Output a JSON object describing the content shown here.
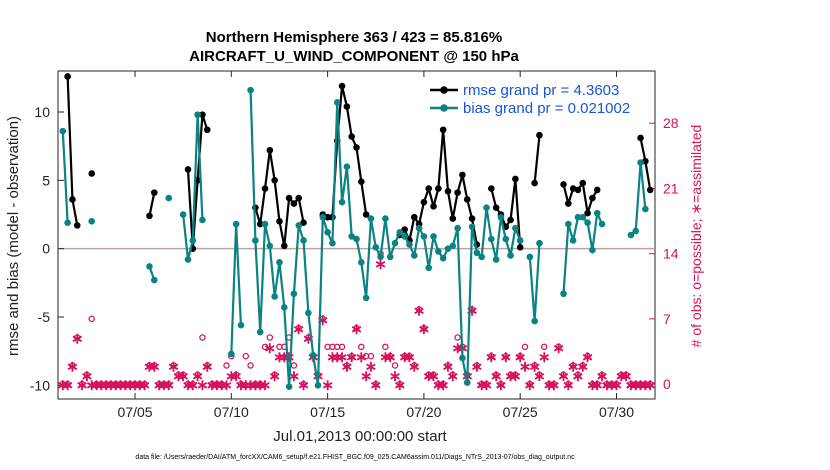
{
  "chart_data": {
    "type": "line",
    "title": "Northern Hemisphere 363 / 423 = 85.816%",
    "subtitle": "AIRCRAFT_U_WIND_COMPONENT @ 150 hPa",
    "xlabel": "Jul.01,2013 00:00:00 start",
    "ylabel": "rmse and bias (model - observation)",
    "ylabel_right": "# of obs: o=possible; ∗=assimilated",
    "footer": "data file: /Users/raeder/DAI/ATM_forcXX/CAM6_setup/f.e21.FHIST_BGC.f09_025.CAM6assim.011/Diags_NTrS_2013-07/obs_diag_output.nc",
    "xlim": [
      1,
      32
    ],
    "ylim": [
      -11,
      13
    ],
    "y2lim": [
      -1.6,
      33.6
    ],
    "x_ticks": [
      5,
      10,
      15,
      20,
      25,
      30
    ],
    "x_tick_labels": [
      "07/05",
      "07/10",
      "07/15",
      "07/20",
      "07/25",
      "07/30"
    ],
    "y_ticks": [
      -10,
      -5,
      0,
      5,
      10
    ],
    "y_tick_labels": [
      "-10",
      "-5",
      "0",
      "5",
      "10"
    ],
    "y2_ticks": [
      0,
      7,
      14,
      21,
      28
    ],
    "y2_tick_labels": [
      "0",
      "7",
      "14",
      "21",
      "28"
    ],
    "zero_line": 0,
    "legend_position": "top-right",
    "series": [
      {
        "name": "rmse grand pr = 4.3603",
        "color": "#000000",
        "marker": "filled-circle",
        "x": [
          1.5,
          1.75,
          2.0,
          null,
          2.75,
          null,
          5.75,
          6.0,
          null,
          7.75,
          8.0,
          8.25,
          8.5,
          8.75,
          null,
          11.25,
          11.5,
          11.75,
          12.0,
          12.25,
          12.5,
          12.75,
          13.0,
          13.25,
          13.5,
          13.75,
          null,
          14.75,
          15.0,
          15.25,
          15.5,
          15.75,
          16.0,
          16.25,
          16.5,
          16.75,
          17.0,
          null,
          18.75,
          19.0,
          19.25,
          19.5,
          19.75,
          20.0,
          20.25,
          20.5,
          20.75,
          21.0,
          21.25,
          21.5,
          21.75,
          22.0,
          22.25,
          22.5,
          22.75,
          null,
          23.5,
          23.75,
          24.0,
          24.25,
          24.5,
          24.75,
          25.0,
          null,
          25.75,
          26.0,
          null,
          27.25,
          27.5,
          27.75,
          28.0,
          28.25,
          28.5,
          28.75,
          29.0,
          null,
          31.25,
          31.5,
          31.75
        ],
        "values": [
          12.6,
          3.6,
          1.7,
          null,
          5.5,
          null,
          2.4,
          4.1,
          null,
          5.8,
          0.0,
          5.0,
          9.8,
          8.7,
          null,
          3.0,
          1.8,
          4.4,
          7.2,
          5.0,
          2.0,
          0.2,
          3.7,
          3.3,
          3.7,
          1.9,
          null,
          2.5,
          2.3,
          2.3,
          7.9,
          11.9,
          10.4,
          8.2,
          7.4,
          4.9,
          2.5,
          null,
          1.0,
          1.4,
          0.6,
          2.3,
          1.8,
          3.4,
          4.4,
          3.1,
          4.4,
          8.7,
          4.2,
          2.2,
          4.1,
          5.4,
          3.6,
          2.2,
          0.3,
          null,
          4.4,
          3.0,
          2.5,
          1.6,
          2.1,
          5.1,
          0.1,
          null,
          4.8,
          8.3,
          null,
          4.7,
          3.3,
          4.4,
          4.3,
          4.8,
          2.6,
          3.7,
          4.3,
          null,
          8.1,
          6.4,
          4.3
        ]
      },
      {
        "name": "bias grand pr = 0.021002",
        "color": "#0b8383",
        "marker": "filled-circle",
        "x": [
          1.25,
          1.5,
          null,
          2.75,
          null,
          5.75,
          6.0,
          null,
          6.75,
          null,
          7.5,
          7.75,
          8.0,
          8.25,
          8.5,
          null,
          10.0,
          10.25,
          10.5,
          null,
          11.0,
          11.25,
          11.5,
          11.75,
          12.0,
          12.25,
          12.5,
          12.75,
          13.0,
          13.25,
          13.5,
          13.75,
          14.0,
          14.25,
          14.5,
          14.75,
          15.0,
          15.25,
          15.5,
          15.75,
          16.0,
          16.25,
          16.5,
          16.75,
          17.0,
          17.25,
          17.5,
          17.75,
          18.0,
          18.25,
          18.5,
          18.75,
          19.0,
          19.25,
          19.5,
          19.75,
          20.0,
          20.25,
          20.5,
          20.75,
          21.0,
          21.25,
          21.5,
          21.75,
          22.0,
          22.25,
          22.5,
          22.75,
          23.0,
          23.25,
          23.5,
          23.75,
          24.0,
          24.25,
          24.5,
          24.75,
          25.0,
          null,
          25.5,
          25.75,
          26.0,
          null,
          27.25,
          27.5,
          27.75,
          28.0,
          28.25,
          28.5,
          28.75,
          29.0,
          29.25,
          null,
          30.75,
          31.0,
          31.25,
          31.5
        ],
        "values": [
          8.6,
          1.9,
          null,
          2.0,
          null,
          -1.3,
          -2.3,
          null,
          3.7,
          null,
          2.5,
          -0.8,
          0.6,
          9.8,
          2.1,
          null,
          -7.7,
          1.8,
          -5.6,
          null,
          11.6,
          0.6,
          -6.1,
          1.8,
          0.2,
          -3.5,
          -1.0,
          -4.3,
          -10.1,
          -3.3,
          1.7,
          0.6,
          -4.7,
          -7.8,
          -10.0,
          2.3,
          1.2,
          0.4,
          10.7,
          3.4,
          6.0,
          0.9,
          0.7,
          -1.0,
          -3.6,
          2.2,
          0.1,
          -0.6,
          2.2,
          -0.6,
          0.4,
          1.2,
          0.9,
          0.3,
          -0.5,
          1.5,
          0.9,
          -1.4,
          0.9,
          -0.2,
          -0.7,
          0.0,
          0.2,
          1.5,
          -8.0,
          -9.8,
          1.6,
          -0.3,
          -0.6,
          3.0,
          0.7,
          -0.8,
          2.3,
          0.7,
          -0.5,
          1.5,
          0.6,
          null,
          -0.6,
          -5.3,
          0.4,
          null,
          -3.3,
          1.8,
          0.6,
          2.3,
          2.3,
          1.9,
          -0.1,
          2.6,
          1.8,
          null,
          1.0,
          1.3,
          6.3,
          2.9
        ]
      }
    ],
    "obs_possible": {
      "name": "o=possible",
      "color": "#d6125f",
      "x": [
        1.25,
        1.5,
        1.75,
        2.0,
        2.25,
        2.5,
        2.75,
        3.0,
        3.25,
        3.5,
        3.75,
        4.0,
        4.25,
        4.5,
        4.75,
        5.0,
        5.25,
        5.5,
        5.75,
        6.0,
        6.25,
        6.5,
        6.75,
        7.0,
        7.25,
        7.5,
        7.75,
        8.0,
        8.25,
        8.5,
        8.75,
        9.0,
        9.25,
        9.5,
        9.75,
        10.0,
        10.25,
        10.5,
        10.75,
        11.0,
        11.25,
        11.5,
        11.75,
        12.0,
        12.25,
        12.5,
        12.75,
        13.0,
        13.25,
        13.5,
        13.75,
        14.0,
        14.25,
        14.5,
        14.75,
        15.0,
        15.25,
        15.5,
        15.75,
        16.0,
        16.25,
        16.5,
        16.75,
        17.0,
        17.25,
        17.5,
        17.75,
        18.0,
        18.25,
        18.5,
        18.75,
        19.0,
        19.25,
        19.5,
        19.75,
        20.0,
        20.25,
        20.5,
        20.75,
        21.0,
        21.25,
        21.5,
        21.75,
        22.0,
        22.25,
        22.5,
        22.75,
        23.0,
        23.25,
        23.5,
        23.75,
        24.0,
        24.25,
        24.5,
        24.75,
        25.0,
        25.25,
        25.5,
        25.75,
        26.0,
        26.25,
        26.5,
        26.75,
        27.0,
        27.25,
        27.5,
        27.75,
        28.0,
        28.25,
        28.5,
        28.75,
        29.0,
        29.25,
        29.5,
        29.75,
        30.0,
        30.25,
        30.5,
        30.75,
        31.0,
        31.25,
        31.5,
        31.75
      ],
      "values": [
        0,
        0,
        2,
        5,
        0,
        1,
        7,
        0,
        0,
        0,
        0,
        0,
        0,
        0,
        0,
        0,
        0,
        0,
        2,
        2,
        0,
        0,
        0,
        2,
        1,
        1,
        0,
        0,
        1,
        5,
        2,
        0,
        0,
        0,
        2,
        3,
        1,
        0,
        3,
        2,
        0,
        0,
        4,
        5,
        1,
        4,
        4,
        5,
        2,
        6,
        0,
        5,
        3,
        1,
        7,
        4,
        4,
        4,
        4,
        2,
        3,
        6,
        4,
        3,
        3,
        0,
        14,
        4,
        3,
        2,
        0,
        3,
        3,
        2,
        8,
        6,
        1,
        1,
        0,
        0,
        2,
        1,
        5,
        4,
        1,
        8,
        2,
        0,
        0,
        3,
        1,
        0,
        3,
        1,
        1,
        3,
        4,
        0,
        2,
        1,
        4,
        0,
        0,
        4,
        1,
        0,
        2,
        1,
        2,
        3,
        0,
        0,
        1,
        0,
        0,
        0,
        1,
        1,
        0,
        0,
        0,
        0,
        0
      ]
    },
    "obs_assimilated": {
      "name": "∗=assimilated",
      "color": "#d6125f",
      "x": [
        1.25,
        1.5,
        1.75,
        2.0,
        2.25,
        2.5,
        2.75,
        3.0,
        3.25,
        3.5,
        3.75,
        4.0,
        4.25,
        4.5,
        4.75,
        5.0,
        5.25,
        5.5,
        5.75,
        6.0,
        6.25,
        6.5,
        6.75,
        7.0,
        7.25,
        7.5,
        7.75,
        8.0,
        8.25,
        8.5,
        8.75,
        9.0,
        9.25,
        9.5,
        9.75,
        10.0,
        10.25,
        10.5,
        10.75,
        11.0,
        11.25,
        11.5,
        11.75,
        12.0,
        12.25,
        12.5,
        12.75,
        13.0,
        13.25,
        13.5,
        13.75,
        14.0,
        14.25,
        14.5,
        14.75,
        15.0,
        15.25,
        15.5,
        15.75,
        16.0,
        16.25,
        16.5,
        16.75,
        17.0,
        17.25,
        17.5,
        17.75,
        18.0,
        18.25,
        18.5,
        18.75,
        19.0,
        19.25,
        19.5,
        19.75,
        20.0,
        20.25,
        20.5,
        20.75,
        21.0,
        21.25,
        21.5,
        21.75,
        22.0,
        22.25,
        22.5,
        22.75,
        23.0,
        23.25,
        23.5,
        23.75,
        24.0,
        24.25,
        24.5,
        24.75,
        25.0,
        25.25,
        25.5,
        25.75,
        26.0,
        26.25,
        26.5,
        26.75,
        27.0,
        27.25,
        27.5,
        27.75,
        28.0,
        28.25,
        28.5,
        28.75,
        29.0,
        29.25,
        29.5,
        29.75,
        30.0,
        30.25,
        30.5,
        30.75,
        31.0,
        31.25,
        31.5,
        31.75
      ],
      "values": [
        0,
        0,
        2,
        5,
        0,
        1,
        0,
        0,
        0,
        0,
        0,
        0,
        0,
        0,
        0,
        0,
        0,
        0,
        2,
        2,
        0,
        0,
        0,
        2,
        1,
        1,
        0,
        0,
        1,
        0,
        2,
        0,
        0,
        0,
        0,
        1,
        1,
        0,
        0,
        0,
        0,
        0,
        0,
        4,
        1,
        3,
        3,
        3,
        1,
        6,
        0,
        5,
        3,
        1,
        7,
        0,
        3,
        3,
        3,
        2,
        3,
        6,
        3,
        1,
        2,
        0,
        13,
        3,
        3,
        1,
        0,
        3,
        3,
        2,
        8,
        6,
        1,
        1,
        0,
        0,
        2,
        1,
        4,
        4,
        1,
        8,
        2,
        0,
        0,
        3,
        1,
        0,
        3,
        1,
        1,
        3,
        2,
        0,
        2,
        1,
        3,
        0,
        0,
        4,
        1,
        0,
        2,
        1,
        2,
        3,
        0,
        0,
        1,
        0,
        0,
        0,
        1,
        1,
        0,
        0,
        0,
        0,
        0
      ]
    },
    "annotations": []
  }
}
